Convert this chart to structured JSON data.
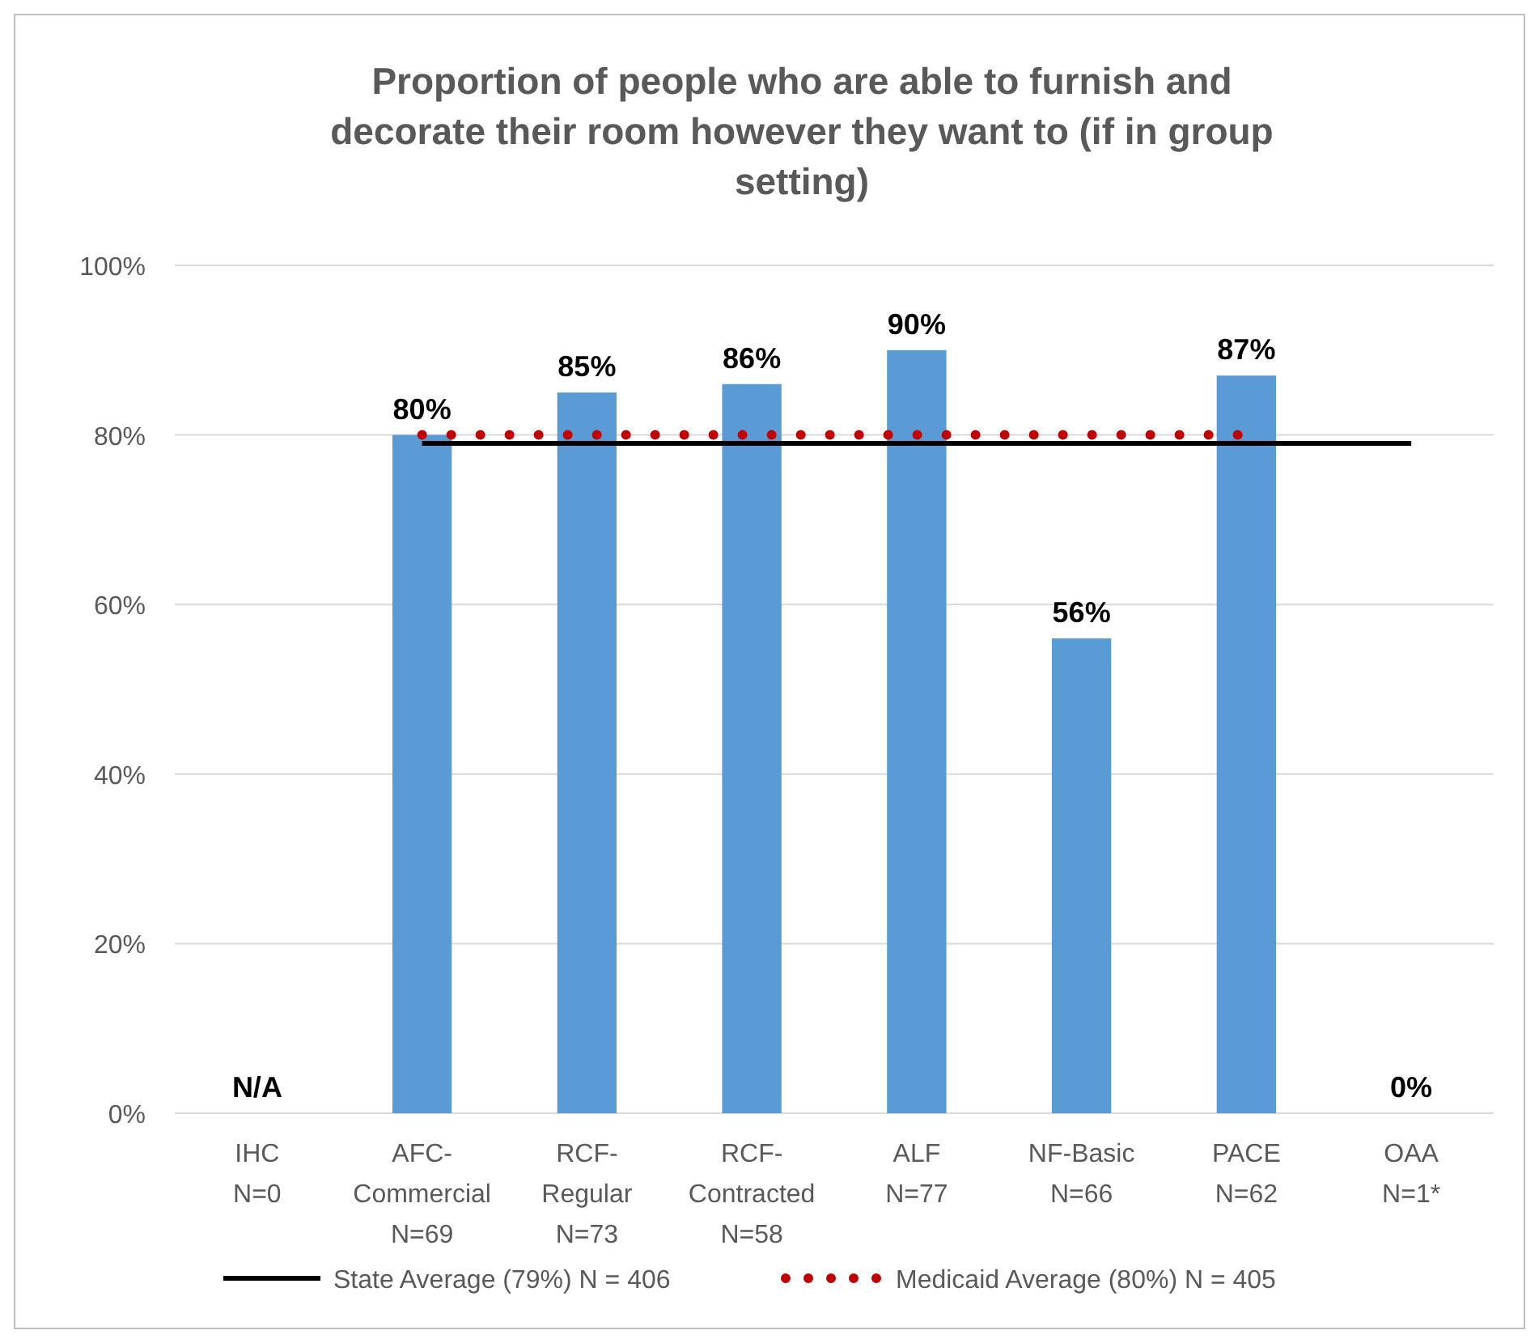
{
  "chart_data": {
    "type": "bar",
    "title": "Proportion of people who are able to furnish and decorate their room however they want to (if in group setting)",
    "categories": [
      "IHC\nN=0",
      "AFC-\nCommercial\nN=69",
      "RCF-\nRegular\nN=73",
      "RCF-\nContracted\nN=58",
      "ALF\nN=77",
      "NF-Basic\nN=66",
      "PACE\nN=62",
      "OAA\nN=1*"
    ],
    "series": [
      {
        "color": "#5b9bd5",
        "values": [
          null,
          80,
          85,
          86,
          90,
          56,
          87,
          0
        ],
        "value_labels": [
          "N/A",
          "80%",
          "85%",
          "86%",
          "90%",
          "56%",
          "87%",
          "0%"
        ]
      },
      {
        "type": "line",
        "name": "State Average (79%) N = 406",
        "color": "#000000",
        "line_style": "solid",
        "values": [
          null,
          79,
          79,
          79,
          79,
          79,
          79,
          79
        ]
      },
      {
        "type": "line",
        "name": "Medicaid Average (80%) N = 405",
        "color": "#c00000",
        "line_style": "dotted",
        "values": [
          null,
          80,
          80,
          80,
          80,
          80,
          80,
          null
        ]
      }
    ],
    "ylim": [
      0,
      100
    ],
    "yticks": [
      {
        "value": 0,
        "label": "0%"
      },
      {
        "value": 20,
        "label": "20%"
      },
      {
        "value": 40,
        "label": "40%"
      },
      {
        "value": 60,
        "label": "60%"
      },
      {
        "value": 80,
        "label": "80%"
      },
      {
        "value": 100,
        "label": "100%"
      }
    ],
    "grid": "y",
    "legend": "bottom"
  }
}
